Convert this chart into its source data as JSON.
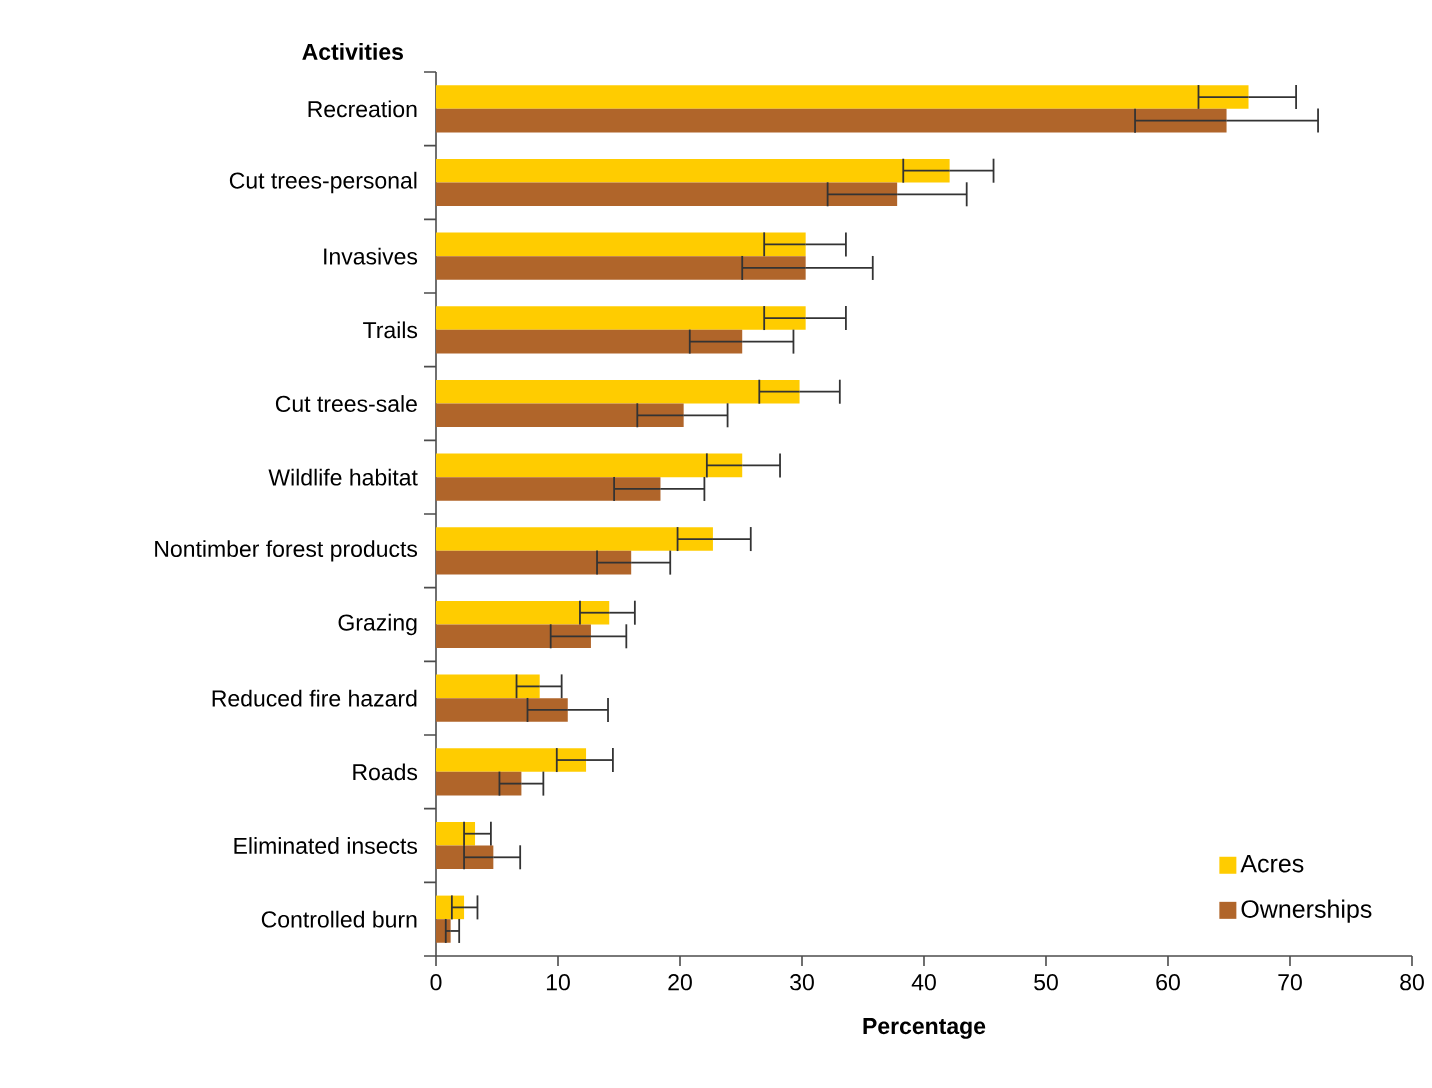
{
  "chart_data": {
    "type": "bar",
    "orientation": "horizontal",
    "xlabel": "Percentage",
    "ylabel": "Activities",
    "categories": [
      "Recreation",
      "Cut trees-personal",
      "Invasives",
      "Trails",
      "Cut trees-sale",
      "Wildlife habitat",
      "Nontimber forest products",
      "Grazing",
      "Reduced fire hazard",
      "Roads",
      "Eliminated insects",
      "Controlled burn"
    ],
    "series": [
      {
        "name": "Acres",
        "color": "#ffcc00",
        "values": [
          66.6,
          42.1,
          30.3,
          30.3,
          29.8,
          25.1,
          22.7,
          14.2,
          8.5,
          12.3,
          3.2,
          2.3
        ],
        "errors": [
          [
            62.5,
            70.5
          ],
          [
            38.3,
            45.7
          ],
          [
            26.9,
            33.6
          ],
          [
            26.9,
            33.6
          ],
          [
            26.5,
            33.1
          ],
          [
            22.2,
            28.2
          ],
          [
            19.8,
            25.8
          ],
          [
            11.8,
            16.3
          ],
          [
            6.6,
            10.3
          ],
          [
            9.9,
            14.5
          ],
          [
            2.3,
            4.5
          ],
          [
            1.3,
            3.4
          ]
        ]
      },
      {
        "name": "Ownerships",
        "color": "#b0652a",
        "values": [
          64.8,
          37.8,
          30.3,
          25.1,
          20.3,
          18.4,
          16.0,
          12.7,
          10.8,
          7.0,
          4.7,
          1.2
        ],
        "errors": [
          [
            57.3,
            72.3
          ],
          [
            32.1,
            43.5
          ],
          [
            25.1,
            35.8
          ],
          [
            20.8,
            29.3
          ],
          [
            16.5,
            23.9
          ],
          [
            14.6,
            22.0
          ],
          [
            13.2,
            19.2
          ],
          [
            9.4,
            15.6
          ],
          [
            7.5,
            14.1
          ],
          [
            5.2,
            8.8
          ],
          [
            2.3,
            6.9
          ],
          [
            0.8,
            1.9
          ]
        ]
      }
    ],
    "xlim": [
      0,
      80
    ],
    "xticks": [
      0,
      10,
      20,
      30,
      40,
      50,
      60,
      70,
      80
    ],
    "legend": "bottom right",
    "grid": false
  }
}
